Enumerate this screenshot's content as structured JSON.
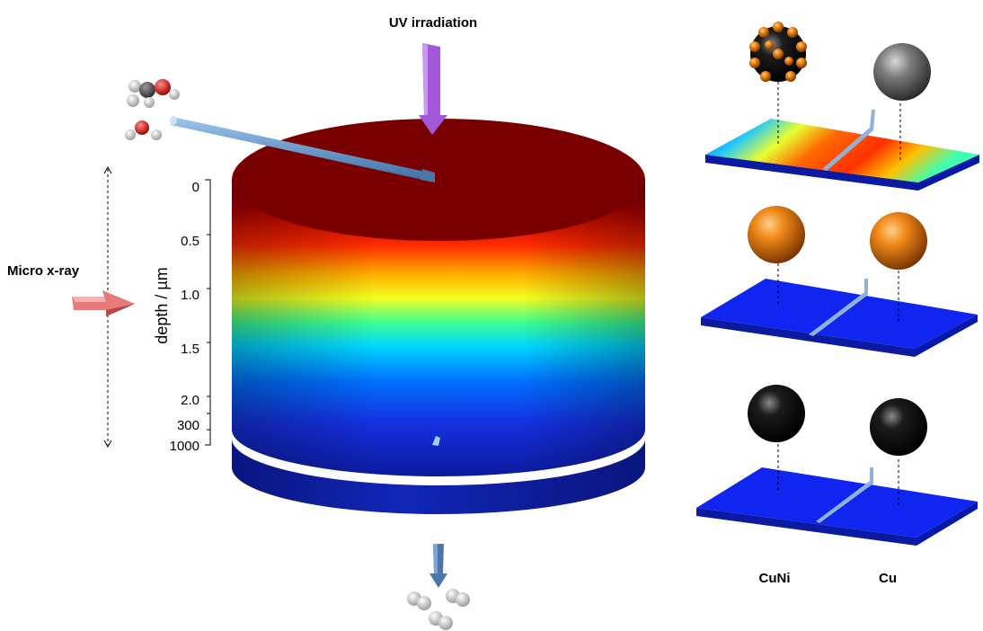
{
  "labels": {
    "uv": "UV irradiation",
    "xray": "Micro x-ray",
    "depth_axis": "depth / µm",
    "catalyst_a": "CuNi",
    "catalyst_b": "Cu"
  },
  "depth_ticks": [
    "0",
    "0.5",
    "1.0",
    "1.5",
    "2.0",
    "300",
    "1000"
  ],
  "colors": {
    "top_face": "#7a0000",
    "base": "#0c1a9e",
    "uv_arrow": "#a259d9",
    "xray_arrow": "#e77a7a",
    "feed_arrow": "#5b8fc7",
    "exhaust_arrow": "#4a77a8",
    "sphere_orange": "#e8780c",
    "sphere_grey": "#777777",
    "sphere_black": "#111111"
  },
  "icons": {
    "inlet_molecules": "methanol-water-molecules-icon",
    "outlet_molecules": "hydrogen-molecules-icon"
  }
}
